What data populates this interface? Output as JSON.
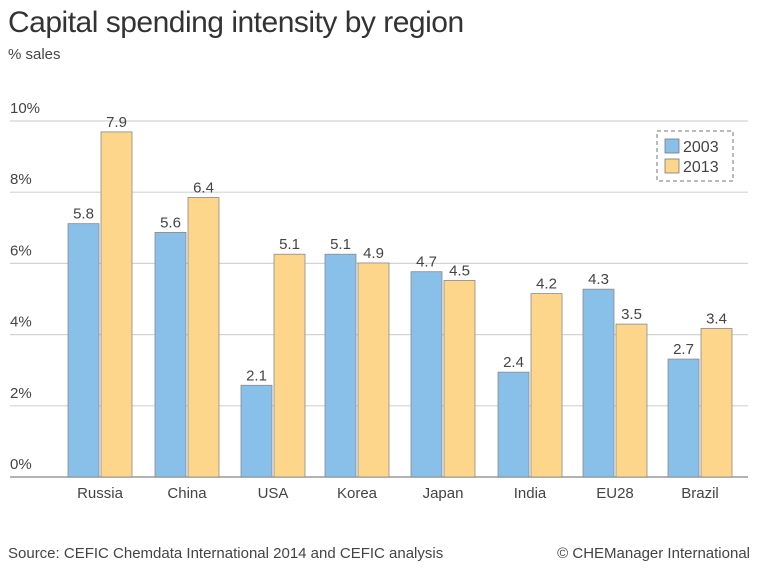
{
  "title": "Capital spending intensity by region",
  "subtitle": "% sales",
  "source": "Source: CEFIC Chemdata International 2014 and CEFIC analysis",
  "credit": "© CHEManager International",
  "chart_data": {
    "type": "bar",
    "title": "Capital spending intensity by region",
    "ylabel": "% sales",
    "categories": [
      "Russia",
      "China",
      "USA",
      "Korea",
      "Japan",
      "India",
      "EU28",
      "Brazil"
    ],
    "series": [
      {
        "name": "2003",
        "color": "#88c0ea",
        "values": [
          5.8,
          5.6,
          2.1,
          5.1,
          4.7,
          2.4,
          4.3,
          2.7
        ]
      },
      {
        "name": "2013",
        "color": "#fdd68c",
        "values": [
          7.9,
          6.4,
          5.1,
          4.9,
          4.5,
          4.2,
          3.5,
          3.4
        ]
      }
    ],
    "yticks": [
      "0%",
      "2%",
      "4%",
      "6%",
      "8%",
      "10%"
    ],
    "ylim": [
      0,
      10
    ],
    "grid": true,
    "legend": "top-right"
  }
}
